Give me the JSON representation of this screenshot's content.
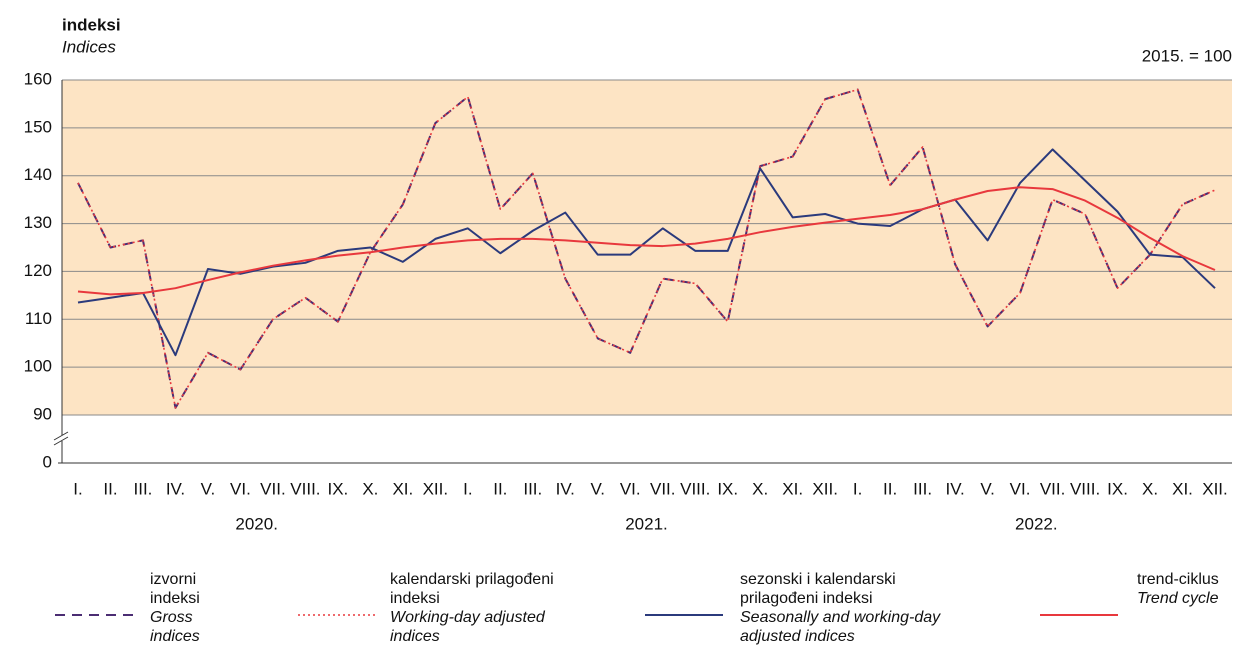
{
  "chart_data": {
    "type": "line",
    "title": "indeksi",
    "subtitle": "Indices",
    "note": "2015. = 100",
    "categories": [
      "I.",
      "II.",
      "III.",
      "IV.",
      "V.",
      "VI.",
      "VII.",
      "VIII.",
      "IX.",
      "X.",
      "XI.",
      "XII.",
      "I.",
      "II.",
      "III.",
      "IV.",
      "V.",
      "VI.",
      "VII.",
      "VIII.",
      "IX.",
      "X.",
      "XI.",
      "XII.",
      "I.",
      "II.",
      "III.",
      "IV.",
      "V.",
      "VI.",
      "VII.",
      "VIII.",
      "IX.",
      "X.",
      "XI.",
      "XII."
    ],
    "years": [
      "2020.",
      "2021.",
      "2022."
    ],
    "ylim": [
      0,
      160
    ],
    "axis_break": [
      0,
      90
    ],
    "yticks": [
      0,
      90,
      100,
      110,
      120,
      130,
      140,
      150,
      160
    ],
    "grid": true,
    "series": [
      {
        "name": "izvorni indeksi",
        "name_en": "Gross indices",
        "color": "#4b2d73",
        "style": "dashed",
        "values": [
          138.5,
          125,
          126.5,
          91.5,
          103,
          99.5,
          110,
          114.5,
          109.5,
          124,
          134,
          151,
          156.5,
          133,
          140.5,
          118.5,
          106,
          103,
          118.5,
          117.5,
          109.5,
          142,
          144,
          156,
          158,
          138,
          146,
          121.5,
          108.5,
          115.5,
          135,
          132,
          116.5,
          123.5,
          134,
          137
        ]
      },
      {
        "name": "kalendarski prilagođeni indeksi",
        "name_en": "Working-day adjusted indices",
        "color": "#e8383d",
        "style": "dotted",
        "values": [
          138.5,
          125,
          126.5,
          91.5,
          103,
          99.5,
          110,
          114.5,
          109.5,
          124,
          134,
          151,
          156.5,
          133,
          140.5,
          118.5,
          106,
          103,
          118.5,
          117.5,
          109.5,
          142,
          144,
          156,
          158,
          138,
          146,
          121.5,
          108.5,
          115.5,
          135,
          132,
          116.5,
          123.5,
          134,
          137
        ]
      },
      {
        "name": "sezonski i kalendarski prilagođeni indeksi",
        "name_en": "Seasonally and working-day adjusted indices",
        "color": "#2b3a7c",
        "style": "solid",
        "values": [
          113.5,
          114.5,
          115.5,
          102.5,
          120.5,
          119.5,
          121,
          121.8,
          124.3,
          125,
          122,
          126.8,
          129,
          123.8,
          128.5,
          132.3,
          123.5,
          123.5,
          129,
          124.3,
          124.3,
          141.5,
          131.3,
          132,
          130,
          129.5,
          133,
          135,
          126.5,
          138.5,
          145.5,
          139,
          132.5,
          123.5,
          123,
          116.5
        ]
      },
      {
        "name": "trend-ciklus",
        "name_en": "Trend cycle",
        "color": "#e8383d",
        "style": "solid",
        "values": [
          115.8,
          115.2,
          115.5,
          116.5,
          118.2,
          119.8,
          121.2,
          122.3,
          123.3,
          124,
          125,
          125.8,
          126.5,
          126.8,
          126.8,
          126.5,
          126,
          125.5,
          125.3,
          125.8,
          126.8,
          128.2,
          129.3,
          130.2,
          131,
          131.8,
          133,
          135,
          136.8,
          137.6,
          137.2,
          134.8,
          131.2,
          127,
          123.2,
          120.3
        ]
      }
    ]
  }
}
